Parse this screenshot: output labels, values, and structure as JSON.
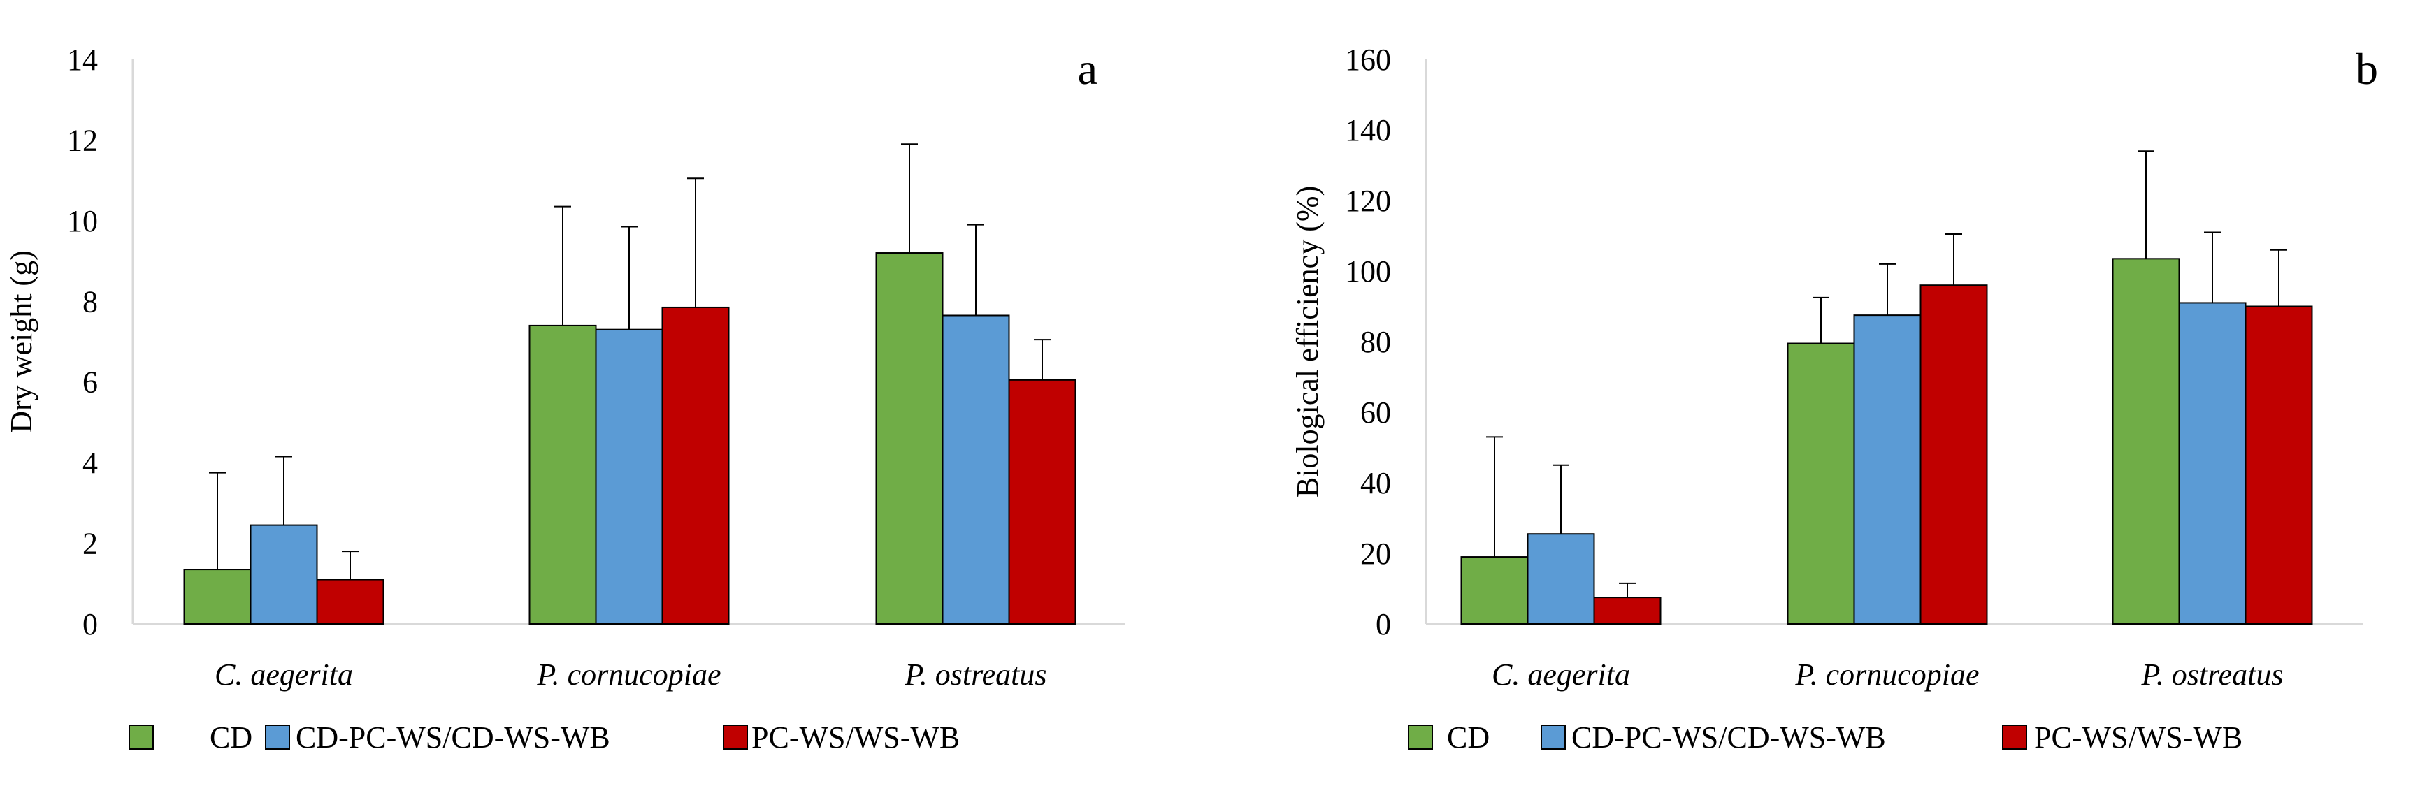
{
  "chart_data": [
    {
      "type": "bar",
      "panel_label": "a",
      "title": "",
      "xlabel": "",
      "ylabel": "Dry weight (g)",
      "ylim": [
        0,
        14
      ],
      "yticks": [
        "0",
        "2",
        "4",
        "6",
        "8",
        "10",
        "12",
        "14"
      ],
      "categories": [
        "C. aegerita",
        "P. cornucopiae",
        "P. ostreatus"
      ],
      "series": [
        {
          "name": "CD",
          "color": "#70AD47",
          "values": [
            1.35,
            7.4,
            9.2
          ],
          "errors": [
            2.4,
            2.95,
            2.7
          ]
        },
        {
          "name": "CD-PC-WS/CD-WS-WB",
          "color": "#5B9BD5",
          "values": [
            2.45,
            7.3,
            7.65
          ],
          "errors": [
            1.7,
            2.55,
            2.25
          ]
        },
        {
          "name": "PC-WS/WS-WB",
          "color": "#C00000",
          "values": [
            1.1,
            7.85,
            6.05
          ],
          "errors": [
            0.7,
            3.2,
            1.0
          ]
        }
      ],
      "legend": "bottom"
    },
    {
      "type": "bar",
      "panel_label": "b",
      "title": "",
      "xlabel": "",
      "ylabel": "Biological efficiency (%)",
      "ylim": [
        0,
        160
      ],
      "yticks": [
        "0",
        "20",
        "40",
        "60",
        "80",
        "100",
        "120",
        "140",
        "160"
      ],
      "categories": [
        "C. aegerita",
        "P. cornucopiae",
        "P. ostreatus"
      ],
      "series": [
        {
          "name": "CD",
          "color": "#70AD47",
          "values": [
            19,
            79.5,
            103.5
          ],
          "errors": [
            34,
            13,
            30.5
          ]
        },
        {
          "name": "CD-PC-WS/CD-WS-WB",
          "color": "#5B9BD5",
          "values": [
            25.5,
            87.5,
            91
          ],
          "errors": [
            19.5,
            14.5,
            20
          ]
        },
        {
          "name": "PC-WS/WS-WB",
          "color": "#C00000",
          "values": [
            7.5,
            96,
            90
          ],
          "errors": [
            4,
            14.5,
            16
          ]
        }
      ],
      "legend": "bottom"
    }
  ]
}
